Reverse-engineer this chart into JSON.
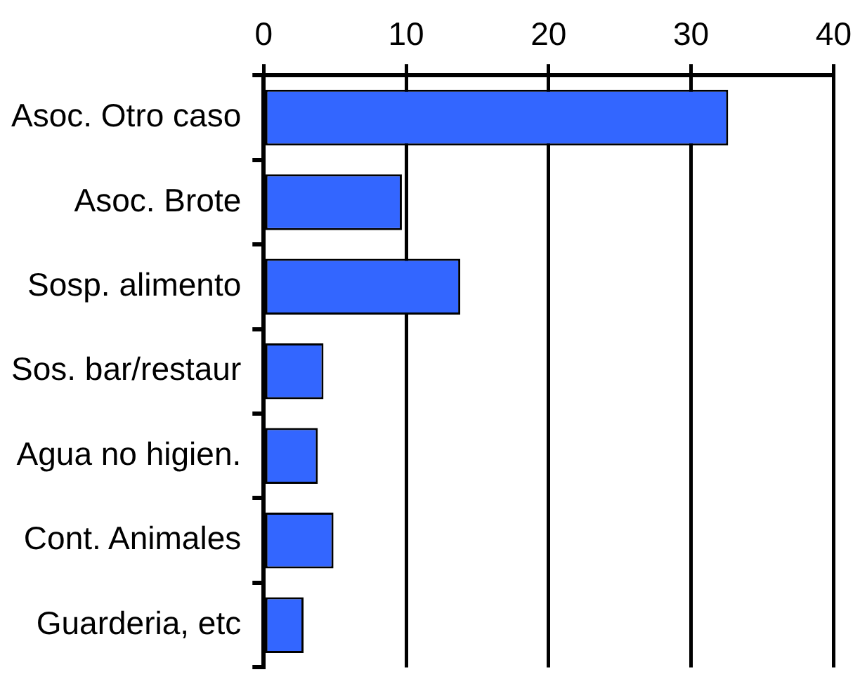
{
  "chart_data": {
    "type": "bar",
    "orientation": "horizontal",
    "categories": [
      "Asoc. Otro caso",
      "Asoc. Brote",
      "Sosp. alimento",
      "Sos. bar/restaur",
      "Agua no higien.",
      "Cont. Animales",
      "Guarderia, etc"
    ],
    "values": [
      32.6,
      9.7,
      13.8,
      4.2,
      3.8,
      4.9,
      2.8
    ],
    "color": "#3366ff",
    "xlim": [
      0,
      40
    ],
    "xticks": [
      0,
      10,
      20,
      30,
      40
    ],
    "grid": "x"
  }
}
